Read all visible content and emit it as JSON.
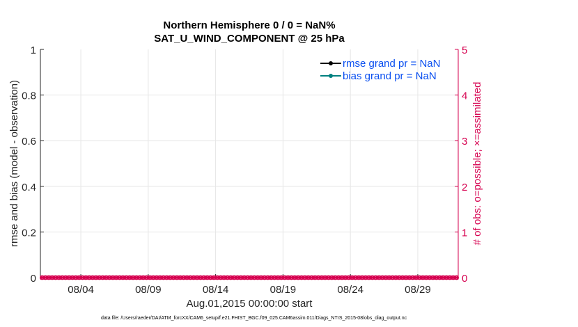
{
  "chart_data": {
    "type": "line",
    "title": [
      "Northern Hemisphere 0 / 0 = NaN%",
      "SAT_U_WIND_COMPONENT @ 25 hPa"
    ],
    "xlabel": "Aug.01,2015 00:00:00 start",
    "ylabel": "rmse and bias (model - observation)",
    "y2label": "# of obs: o=possible; ×=assimilated",
    "xlim": [
      "08/01",
      "09/01"
    ],
    "xticks": [
      "08/04",
      "08/09",
      "08/14",
      "08/19",
      "08/24",
      "08/29"
    ],
    "ylim": [
      0,
      1
    ],
    "yticks": [
      "0",
      "0.2",
      "0.4",
      "0.6",
      "0.8",
      "1"
    ],
    "y2lim": [
      0,
      5
    ],
    "y2ticks": [
      "0",
      "1",
      "2",
      "3",
      "4",
      "5"
    ],
    "grid": true,
    "legend_placement": "top-right",
    "series": [
      {
        "name": "rmse grand pr = NaN",
        "color": "#000000",
        "values": []
      },
      {
        "name": "bias grand pr = NaN",
        "color": "#00807f",
        "values": []
      }
    ],
    "obs_count_color": "#d6004f",
    "obs_interval_hours": 6,
    "obs_possible": [
      0,
      0,
      0,
      0,
      0,
      0,
      0,
      0,
      0,
      0,
      0,
      0,
      0,
      0,
      0,
      0,
      0,
      0,
      0,
      0,
      0,
      0,
      0,
      0,
      0,
      0,
      0,
      0,
      0,
      0,
      0,
      0,
      0,
      0,
      0,
      0,
      0,
      0,
      0,
      0,
      0,
      0,
      0,
      0,
      0,
      0,
      0,
      0,
      0,
      0,
      0,
      0,
      0,
      0,
      0,
      0,
      0,
      0,
      0,
      0,
      0,
      0,
      0,
      0,
      0,
      0,
      0,
      0,
      0,
      0,
      0,
      0,
      0,
      0,
      0,
      0,
      0,
      0,
      0,
      0,
      0,
      0,
      0,
      0,
      0,
      0,
      0,
      0,
      0,
      0,
      0,
      0,
      0,
      0,
      0,
      0,
      0,
      0,
      0,
      0,
      0,
      0,
      0,
      0,
      0,
      0,
      0,
      0,
      0,
      0,
      0,
      0,
      0,
      0,
      0,
      0,
      0,
      0,
      0,
      0,
      0,
      0,
      0,
      0
    ],
    "obs_assimilated": [
      0,
      0,
      0,
      0,
      0,
      0,
      0,
      0,
      0,
      0,
      0,
      0,
      0,
      0,
      0,
      0,
      0,
      0,
      0,
      0,
      0,
      0,
      0,
      0,
      0,
      0,
      0,
      0,
      0,
      0,
      0,
      0,
      0,
      0,
      0,
      0,
      0,
      0,
      0,
      0,
      0,
      0,
      0,
      0,
      0,
      0,
      0,
      0,
      0,
      0,
      0,
      0,
      0,
      0,
      0,
      0,
      0,
      0,
      0,
      0,
      0,
      0,
      0,
      0,
      0,
      0,
      0,
      0,
      0,
      0,
      0,
      0,
      0,
      0,
      0,
      0,
      0,
      0,
      0,
      0,
      0,
      0,
      0,
      0,
      0,
      0,
      0,
      0,
      0,
      0,
      0,
      0,
      0,
      0,
      0,
      0,
      0,
      0,
      0,
      0,
      0,
      0,
      0,
      0,
      0,
      0,
      0,
      0,
      0,
      0,
      0,
      0,
      0,
      0,
      0,
      0,
      0,
      0,
      0,
      0,
      0,
      0,
      0,
      0
    ]
  },
  "footer": "data file: /Users/raeder/DAI/ATM_forcXX/CAM6_setup/f.e21.FHIST_BGC.f09_025.CAM6assim.011/Diags_NTrS_2015-08/obs_diag_output.nc"
}
